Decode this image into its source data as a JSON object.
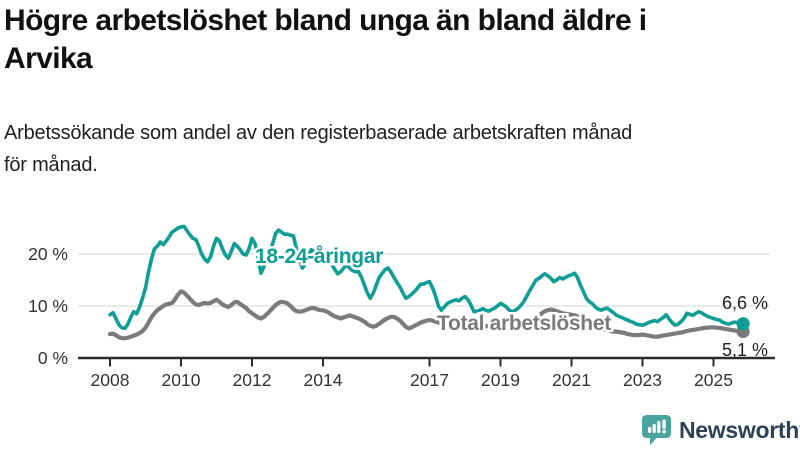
{
  "header": {
    "title_lines": [
      "Högre arbetslöshet bland unga än bland äldre i",
      "Arvika"
    ],
    "subtitle_lines": [
      "Arbetssökande som andel av den registerbaserade arbetskraften månad",
      "för månad."
    ]
  },
  "branding": {
    "logo_text": "Newsworthy",
    "logo_icon": "bar-chart-speech-bubble-icon",
    "logo_teal": "#4aa39c",
    "logo_text_color": "#2e4257"
  },
  "chart_data": {
    "type": "line",
    "title": "Högre arbetslöshet bland unga än bland äldre i Arvika",
    "subtitle": "Arbetssökande som andel av den registerbaserade arbetskraften månad för månad.",
    "unit": "%",
    "frequency": "monthly",
    "x_start": "2008-01",
    "x_end": "2025-11",
    "x_ticks": [
      2008,
      2010,
      2012,
      2014,
      2017,
      2019,
      2021,
      2023,
      2025
    ],
    "y_ticks": [
      0,
      10,
      20
    ],
    "y_tick_labels": [
      "0 %",
      "10 %",
      "20 %"
    ],
    "ylim": [
      0,
      27
    ],
    "grid": "horizontal",
    "legend_position": "inline-labels",
    "colors": {
      "youth": "#0f9e95",
      "total": "#7b7b7b",
      "gridline": "#e3e3e3",
      "axis": "#2b2b2b",
      "tick_text": "#333333"
    },
    "series": [
      {
        "id": "total",
        "name": "Total arbetslöshet",
        "color": "#7b7b7b",
        "end_label": "5,1 %",
        "end_value": 5.1,
        "values": [
          4.6,
          4.7,
          4.4,
          4.0,
          3.8,
          3.8,
          3.9,
          4.1,
          4.3,
          4.5,
          4.8,
          5.2,
          5.8,
          6.8,
          7.8,
          8.6,
          9.2,
          9.6,
          10.0,
          10.3,
          10.4,
          10.6,
          11.3,
          12.2,
          12.8,
          12.6,
          12.0,
          11.4,
          10.8,
          10.3,
          10.2,
          10.4,
          10.6,
          10.5,
          10.6,
          10.9,
          11.2,
          10.8,
          10.3,
          10.0,
          9.8,
          10.2,
          10.7,
          10.8,
          10.4,
          10.0,
          9.6,
          9.0,
          8.6,
          8.2,
          7.8,
          7.6,
          7.9,
          8.4,
          9.0,
          9.6,
          10.2,
          10.6,
          10.8,
          10.7,
          10.5,
          10.0,
          9.4,
          9.0,
          8.9,
          9.0,
          9.2,
          9.4,
          9.6,
          9.6,
          9.4,
          9.2,
          9.2,
          9.0,
          8.7,
          8.3,
          8.0,
          7.8,
          7.6,
          7.8,
          8.0,
          8.2,
          8.0,
          7.8,
          7.6,
          7.3,
          7.0,
          6.5,
          6.2,
          6.0,
          6.2,
          6.6,
          7.0,
          7.4,
          7.7,
          7.9,
          7.9,
          7.6,
          7.2,
          6.6,
          6.0,
          5.7,
          5.9,
          6.2,
          6.5,
          6.8,
          7.0,
          7.2,
          7.3,
          7.2,
          7.0,
          6.8,
          6.6,
          6.5,
          6.6,
          6.8,
          7.0,
          7.1,
          7.0,
          6.9,
          6.8,
          6.6,
          6.4,
          6.2,
          6.0,
          5.9,
          6.0,
          6.1,
          6.2,
          6.3,
          6.4,
          6.5,
          6.6,
          6.5,
          6.4,
          6.3,
          6.2,
          6.3,
          6.5,
          6.7,
          6.9,
          7.1,
          7.4,
          7.7,
          8.0,
          8.2,
          8.6,
          9.0,
          9.2,
          9.3,
          9.2,
          9.0,
          8.8,
          8.6,
          8.5,
          8.4,
          8.3,
          8.2,
          8.0,
          7.7,
          7.4,
          7.0,
          6.7,
          6.4,
          6.1,
          5.9,
          5.7,
          5.5,
          5.4,
          5.2,
          5.1,
          5.1,
          5.0,
          4.9,
          4.8,
          4.6,
          4.5,
          4.4,
          4.4,
          4.4,
          4.5,
          4.4,
          4.3,
          4.2,
          4.1,
          4.1,
          4.2,
          4.3,
          4.4,
          4.5,
          4.6,
          4.7,
          4.8,
          4.9,
          5.0,
          5.2,
          5.3,
          5.4,
          5.5,
          5.6,
          5.7,
          5.8,
          5.8,
          5.9,
          5.9,
          5.8,
          5.8,
          5.7,
          5.6,
          5.5,
          5.4,
          5.3,
          5.2,
          5.1,
          5.1
        ]
      },
      {
        "id": "youth",
        "name": "18-24-åringar",
        "color": "#0f9e95",
        "end_label": "6,6 %",
        "end_value": 6.6,
        "values": [
          8.3,
          8.7,
          7.6,
          6.4,
          5.8,
          5.7,
          6.5,
          7.8,
          8.9,
          8.5,
          9.8,
          11.5,
          13.5,
          16.5,
          19.0,
          21.0,
          21.5,
          22.3,
          21.8,
          22.5,
          23.3,
          24.2,
          24.6,
          25.0,
          25.2,
          25.3,
          24.5,
          23.7,
          23.0,
          22.8,
          21.5,
          20.0,
          19.0,
          18.5,
          19.5,
          21.5,
          23.0,
          22.5,
          21.0,
          19.8,
          19.2,
          20.5,
          22.0,
          21.5,
          20.8,
          20.0,
          19.8,
          21.0,
          23.0,
          22.0,
          19.5,
          16.3,
          17.5,
          19.5,
          20.5,
          22.0,
          24.0,
          24.6,
          24.2,
          23.8,
          23.8,
          23.6,
          23.5,
          21.0,
          19.0,
          17.3,
          18.0,
          19.5,
          20.8,
          20.5,
          19.8,
          19.5,
          19.5,
          19.2,
          18.8,
          18.0,
          17.0,
          16.2,
          16.6,
          17.3,
          17.9,
          17.3,
          16.8,
          16.6,
          16.6,
          15.5,
          14.0,
          12.5,
          11.5,
          12.5,
          14.0,
          15.5,
          16.3,
          17.0,
          17.3,
          16.5,
          15.5,
          14.5,
          13.7,
          12.5,
          11.5,
          11.8,
          12.3,
          12.8,
          13.5,
          14.2,
          14.2,
          14.5,
          14.7,
          13.5,
          12.0,
          10.0,
          9.2,
          9.8,
          10.5,
          10.8,
          11.0,
          11.2,
          11.0,
          11.5,
          11.8,
          11.2,
          10.2,
          8.9,
          9.0,
          9.2,
          9.5,
          9.2,
          9.0,
          9.3,
          9.6,
          10.0,
          10.5,
          10.2,
          9.8,
          9.2,
          8.9,
          9.2,
          9.6,
          10.2,
          11.0,
          12.0,
          13.1,
          14.0,
          15.0,
          15.3,
          15.8,
          16.2,
          15.8,
          15.3,
          14.7,
          15.0,
          15.5,
          15.2,
          15.5,
          15.8,
          16.0,
          16.3,
          15.5,
          14.0,
          12.8,
          11.5,
          10.8,
          10.5,
          9.8,
          9.4,
          9.2,
          9.4,
          9.6,
          9.2,
          8.8,
          8.3,
          8.0,
          7.8,
          7.5,
          7.3,
          7.0,
          6.8,
          6.5,
          6.4,
          6.3,
          6.5,
          6.8,
          7.0,
          7.2,
          7.0,
          7.4,
          7.8,
          8.3,
          7.5,
          6.8,
          6.3,
          6.5,
          7.0,
          7.6,
          8.6,
          8.4,
          8.2,
          8.6,
          8.9,
          8.7,
          8.3,
          8.0,
          7.8,
          7.6,
          7.4,
          7.3,
          6.9,
          6.7,
          6.5,
          6.7,
          6.9,
          6.8,
          6.7,
          6.6
        ]
      }
    ]
  }
}
